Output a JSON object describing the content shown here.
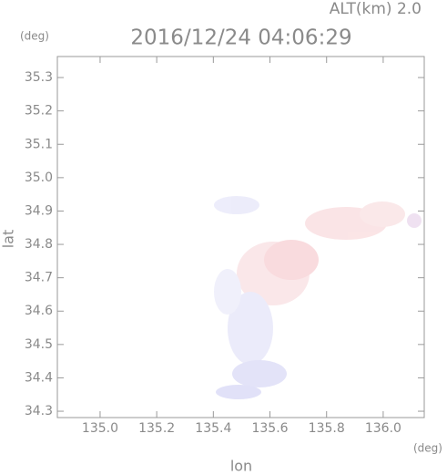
{
  "chart_data": {
    "type": "radar-field",
    "title": "2016/12/24 04:06:29",
    "subtitle": "ALT(km) 2.0",
    "x_label": "lon",
    "y_label": "lat",
    "x_unit": "(deg)",
    "y_unit": "(deg)",
    "xlim": [
      134.849,
      136.145
    ],
    "ylim": [
      34.281,
      35.363
    ],
    "xticks": [
      {
        "value": 135,
        "label": "135.0"
      },
      135.2,
      135.4,
      135.6,
      135.8,
      {
        "value": 136,
        "label": "136.0"
      }
    ],
    "yticks": [
      34.3,
      34.4,
      34.5,
      34.6,
      34.7,
      34.8,
      34.9,
      {
        "value": 35,
        "label": "35.0"
      },
      35.1,
      35.2,
      35.3
    ]
  }
}
